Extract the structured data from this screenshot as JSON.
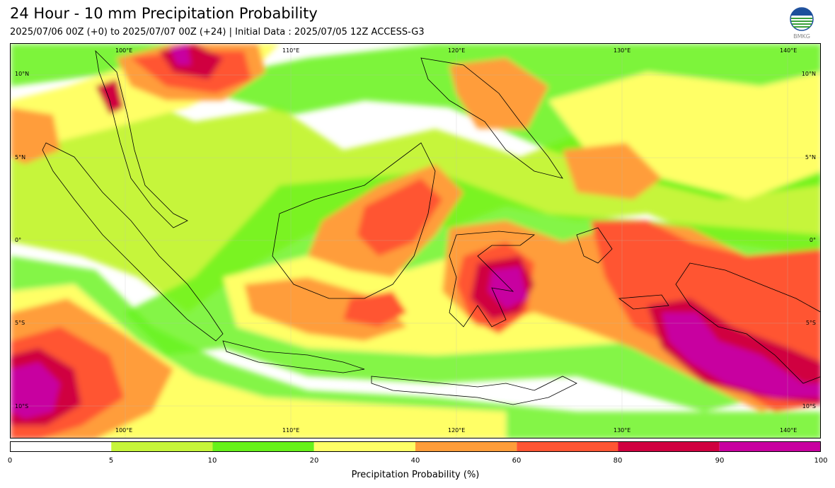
{
  "header": {
    "title": "24 Hour - 10 mm Precipitation Probability",
    "subtitle": "2025/07/06 00Z (+0) to 2025/07/07 00Z (+24) | Initial Data : 2025/07/05 12Z ACCESS-G3"
  },
  "logo": {
    "icon": "bmkg-logo-icon",
    "text": "BMKG"
  },
  "map": {
    "region": "Indonesia",
    "lon_range": [
      95,
      144
    ],
    "lat_range": [
      -12,
      11
    ],
    "lon_labels_top": [
      "100°E",
      "110°E",
      "120°E",
      "130°E",
      "140°E"
    ],
    "lon_labels_bottom": [
      "100°E",
      "110°E",
      "120°E",
      "130°E",
      "140°E"
    ],
    "lat_labels_left": [
      "10°N",
      "5°N",
      "0°",
      "5°S",
      "10°S"
    ],
    "lat_labels_right": [
      "10°N",
      "5°N",
      "0°",
      "5°S",
      "10°S"
    ],
    "gridlines": true,
    "field_description": "Precipitation probability shaded field over the Indonesian region"
  },
  "colorbar": {
    "label": "Precipitation Probability (%)",
    "ticks": [
      "0",
      "5",
      "10",
      "20",
      "40",
      "60",
      "80",
      "90",
      "100"
    ],
    "bins": [
      {
        "from": 0,
        "to": 5,
        "color": "#ffffff"
      },
      {
        "from": 5,
        "to": 10,
        "color": "#c6f53a"
      },
      {
        "from": 10,
        "to": 20,
        "color": "#66f21a"
      },
      {
        "from": 20,
        "to": 40,
        "color": "#ffff66"
      },
      {
        "from": 40,
        "to": 60,
        "color": "#ff9d3a"
      },
      {
        "from": 60,
        "to": 80,
        "color": "#ff5533"
      },
      {
        "from": 80,
        "to": 90,
        "color": "#d00040"
      },
      {
        "from": 90,
        "to": 100,
        "color": "#c800a0"
      }
    ]
  }
}
